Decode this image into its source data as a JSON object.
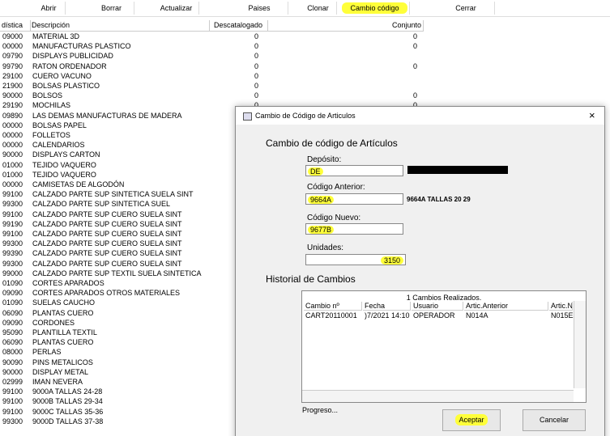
{
  "toolbar": {
    "buttons": [
      "Abrir",
      "Borrar",
      "Actualizar",
      "Paises",
      "Clonar",
      "Cambio código",
      "Cerrar"
    ]
  },
  "table": {
    "headers": [
      "dística",
      "Descripción",
      "Descatalogado",
      "Conjunto"
    ],
    "rows": [
      [
        "09000",
        "MATERIAL 3D",
        "0",
        "0"
      ],
      [
        "00000",
        "MANUFACTURAS PLASTICO",
        "0",
        "0"
      ],
      [
        "09790",
        "DISPLAYS PUBLICIDAD",
        "0"
      ],
      [
        "99790",
        "RATON ORDENADOR",
        "0",
        "0"
      ],
      [
        "29100",
        "CUERO VACUNO",
        "0"
      ],
      [
        "21900",
        "BOLSAS PLASTICO",
        "0"
      ],
      [
        "90000",
        "BOLSOS",
        "0",
        "0"
      ],
      [
        "29190",
        "MOCHILAS",
        "0",
        "0"
      ],
      [
        "09890",
        "LAS DEMAS MANUFACTURAS DE MADERA"
      ],
      [
        "00000",
        "BOLSAS PAPEL"
      ],
      [
        "00000",
        "FOLLETOS"
      ],
      [
        "00000",
        "CALENDARIOS"
      ],
      [
        "90000",
        "DISPLAYS CARTON"
      ],
      [
        "01000",
        "TEJIDO VAQUERO"
      ],
      [
        "01000",
        "TEJIDO VAQUERO"
      ],
      [
        "00000",
        "CAMISETAS DE ALGODÓN"
      ],
      [
        "99100",
        "CALZADO PARTE SUP SINTETICA SUELA SINT"
      ],
      [
        "99300",
        "CALZADO PARTE SUP SINTETICA SUEL"
      ],
      [
        "99100",
        "CALZADO PARTE SUP CUERO SUELA SINT"
      ],
      [
        "99190",
        "CALZADO PARTE SUP CUERO SUELA SINT"
      ],
      [
        "99100",
        "CALZADO PARTE SUP CUERO SUELA SINT"
      ],
      [
        "99300",
        "CALZADO PARTE SUP CUERO SUELA SINT"
      ],
      [
        "99390",
        "CALZADO PARTE SUP CUERO SUELA SINT"
      ],
      [
        "99300",
        "CALZADO PARTE SUP CUERO SUELA SINT"
      ],
      [
        "99000",
        "CALZADO PARTE SUP TEXTIL SUELA SINTETICA"
      ],
      [
        "01090",
        "CORTES APARADOS"
      ],
      [
        "09090",
        "CORTES APARADOS OTROS MATERIALES"
      ],
      [
        "01090",
        "SUELAS CAUCHO"
      ],
      [
        "06090",
        "PLANTAS CUERO"
      ],
      [
        "09090",
        "CORDONES"
      ],
      [
        "95090",
        "PLANTILLA TEXTIL"
      ],
      [
        "06090",
        "PLANTAS CUERO"
      ],
      [
        "08000",
        "PERLAS"
      ],
      [
        "90090",
        "PINS METALICOS"
      ],
      [
        "90000",
        "DISPLAY METAL"
      ],
      [
        "02999",
        "IMAN NEVERA"
      ],
      [
        "99100",
        "9000A TALLAS 24-28"
      ],
      [
        "99100",
        "9000B TALLAS 29-34"
      ],
      [
        "99100",
        "9000C TALLAS 35-36"
      ],
      [
        "99300",
        "9000D TALLAS 37-38"
      ]
    ]
  },
  "dialog": {
    "title": "Cambio de Código de Articulos",
    "heading": "Cambio de código de Artículos",
    "deposito_label": "Depósito:",
    "deposito": "DE",
    "anterior_label": "Código Anterior:",
    "anterior": "9664A",
    "anterior_desc": "9664A TALLAS 20 29",
    "nuevo_label": "Código Nuevo:",
    "nuevo": "9677B",
    "unidades_label": "Unidades:",
    "unidades": "3150",
    "historial": "Historial de Cambios",
    "grid": {
      "caption": "1 Cambios Realizados.",
      "headers": [
        "Cambio nº",
        "Fecha",
        "Usuario",
        "Artic.Anterior",
        "Artic.N"
      ],
      "rows": [
        [
          "CART20110001",
          ")7/2021 14:10",
          "OPERADOR",
          "N014A",
          "N015E"
        ]
      ]
    },
    "progreso": "Progreso...",
    "aceptar": "Aceptar",
    "cancelar": "Cancelar"
  }
}
